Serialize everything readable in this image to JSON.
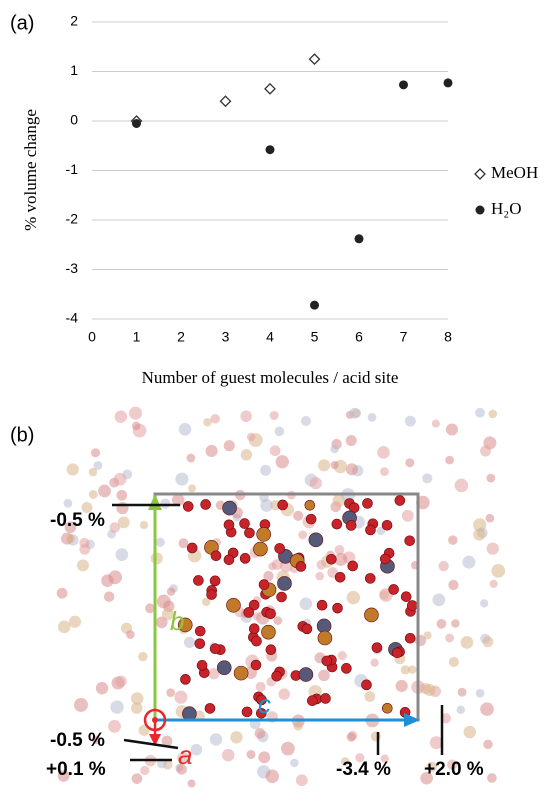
{
  "chart_data": {
    "type": "scatter",
    "panel_label": "(a)",
    "x_label": "Number of guest molecules / acid site",
    "y_label": "% volume change",
    "xlim": [
      0,
      8
    ],
    "xticks": [
      0,
      1,
      2,
      3,
      4,
      5,
      6,
      7,
      8
    ],
    "ylim": [
      -4,
      2
    ],
    "yticks": [
      -4,
      -3,
      -2,
      -1,
      0,
      1,
      2
    ],
    "grid": true,
    "series": [
      {
        "name": "MeOH",
        "marker": "open-diamond",
        "color": "#333333",
        "x": [
          1,
          3,
          4,
          5
        ],
        "values": [
          0,
          0.4,
          0.65,
          1.25
        ]
      },
      {
        "name": "H₂O",
        "marker": "filled-circle",
        "color": "#222222",
        "x": [
          1,
          4,
          5,
          6,
          7,
          8
        ],
        "values": [
          -0.05,
          -0.58,
          -3.72,
          -2.38,
          0.73,
          0.77
        ]
      }
    ]
  },
  "structure": {
    "panel_label": "(b)",
    "axis_a": "a",
    "axis_b": "b",
    "axis_c": "c",
    "labels": [
      "-0.5 %",
      "-0.5 %",
      "+0.1 %",
      "-3.4 %",
      "+2.0 %"
    ]
  }
}
